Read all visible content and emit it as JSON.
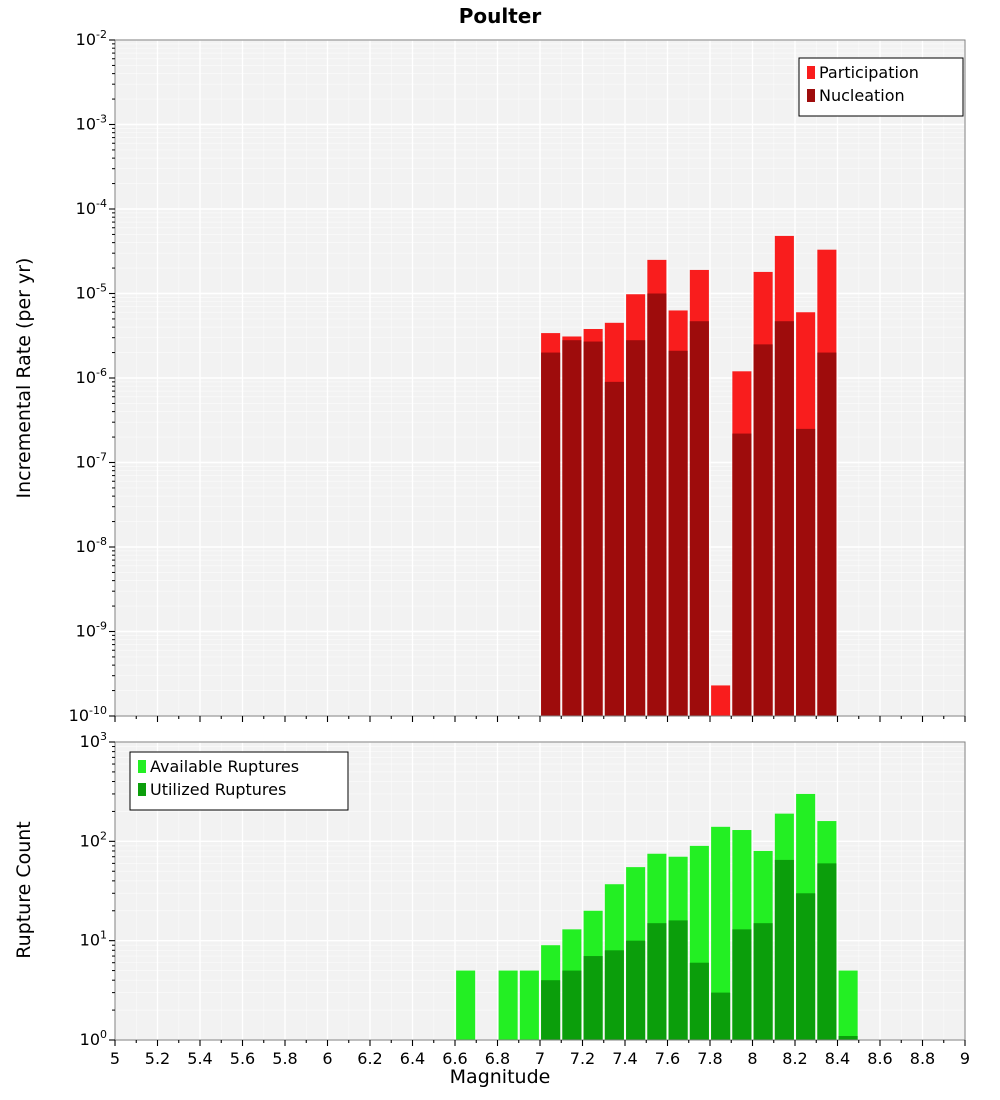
{
  "title": "Poulter",
  "x_tick_labels": [
    "5",
    "5.2",
    "5.4",
    "5.6",
    "5.8",
    "6",
    "6.2",
    "6.4",
    "6.6",
    "6.8",
    "7",
    "7.2",
    "7.4",
    "7.6",
    "7.8",
    "8",
    "8.2",
    "8.4",
    "8.6",
    "8.8",
    "9"
  ],
  "chart_data": [
    {
      "type": "bar",
      "title": "Poulter",
      "ylabel": "Incremental Rate (per yr)",
      "xlabel": "Magnitude",
      "y_scale": "log",
      "ylim": [
        1e-10,
        0.01
      ],
      "y_tick_exponents": [
        -2,
        -3,
        -4,
        -5,
        -6,
        -7,
        -8,
        -9,
        -10
      ],
      "xlim": [
        5,
        9
      ],
      "x_tick_step": 0.2,
      "bin_width": 0.1,
      "grid": true,
      "legend_position": "top-right",
      "categories": [
        7.05,
        7.15,
        7.25,
        7.35,
        7.45,
        7.55,
        7.65,
        7.75,
        7.85,
        7.95,
        8.05,
        8.15,
        8.25,
        8.35
      ],
      "series": [
        {
          "name": "Participation",
          "color": "#f91d1d",
          "values": [
            3.4e-06,
            3.1e-06,
            3.8e-06,
            4.5e-06,
            9.8e-06,
            2.5e-05,
            6.3e-06,
            1.9e-05,
            2.3e-10,
            1.2e-06,
            1.8e-05,
            4.8e-05,
            6e-06,
            3.3e-05
          ]
        },
        {
          "name": "Nucleation",
          "color": "#9e0c0c",
          "values": [
            2e-06,
            2.8e-06,
            2.7e-06,
            9e-07,
            2.8e-06,
            1e-05,
            2.1e-06,
            4.7e-06,
            null,
            2.2e-07,
            2.5e-06,
            4.7e-06,
            2.5e-07,
            2e-06
          ]
        }
      ]
    },
    {
      "type": "bar",
      "title": "",
      "ylabel": "Rupture Count",
      "xlabel": "Magnitude",
      "y_scale": "log",
      "ylim": [
        1,
        1000
      ],
      "y_tick_exponents": [
        0,
        1,
        2,
        3
      ],
      "xlim": [
        5,
        9
      ],
      "x_tick_step": 0.2,
      "bin_width": 0.1,
      "grid": true,
      "legend_position": "top-left",
      "categories": [
        6.65,
        6.85,
        6.95,
        7.05,
        7.15,
        7.25,
        7.35,
        7.45,
        7.55,
        7.65,
        7.75,
        7.85,
        7.95,
        8.05,
        8.15,
        8.25,
        8.35,
        8.45
      ],
      "series": [
        {
          "name": "Available Ruptures",
          "color": "#23ef23",
          "values": [
            5,
            5,
            5,
            9,
            13,
            20,
            37,
            55,
            75,
            70,
            90,
            140,
            130,
            80,
            190,
            300,
            160,
            5
          ]
        },
        {
          "name": "Utilized Ruptures",
          "color": "#0b9e0b",
          "values": [
            null,
            null,
            null,
            4,
            5,
            7,
            8,
            10,
            15,
            16,
            6,
            3,
            13,
            15,
            65,
            30,
            60,
            1
          ]
        }
      ]
    }
  ]
}
